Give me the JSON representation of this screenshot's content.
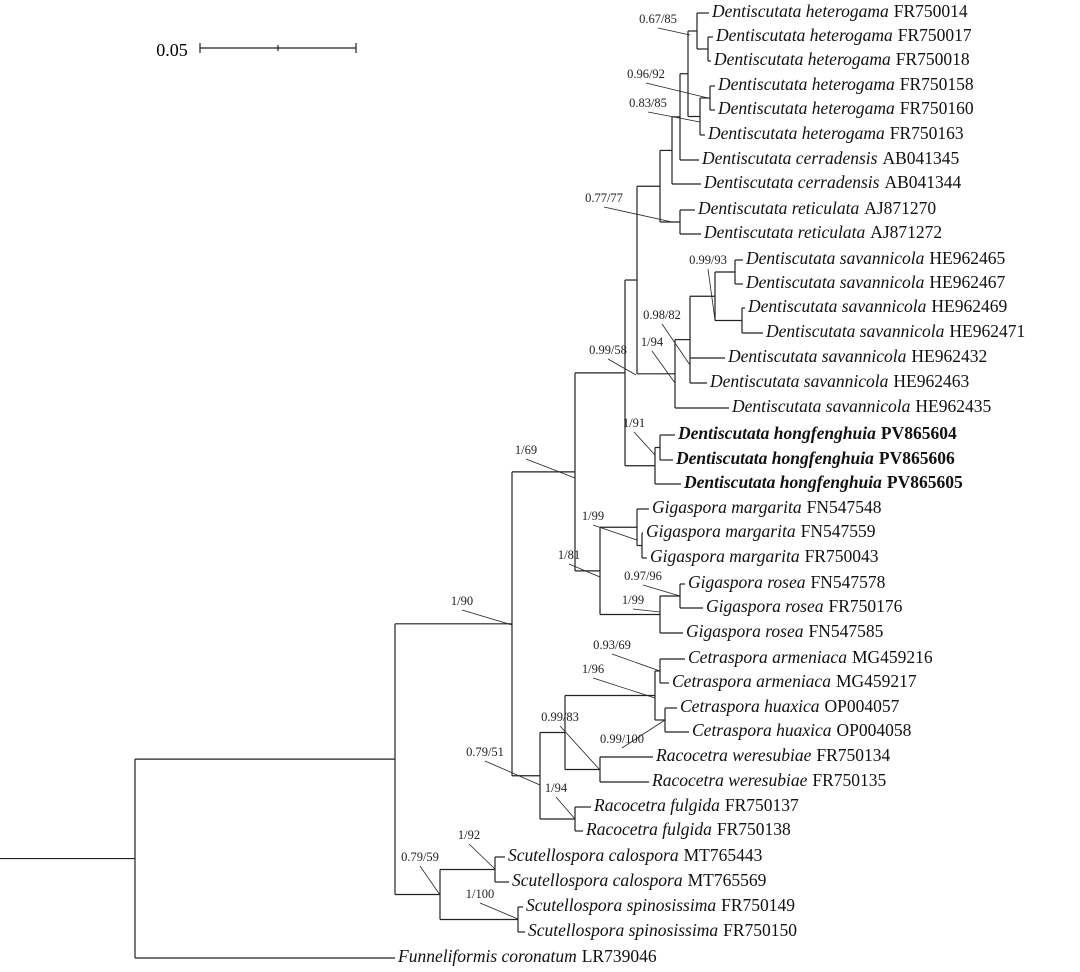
{
  "scale_bar": {
    "label": "0.05"
  },
  "taxa": [
    {
      "species": "Dentiscutata heterogama",
      "accession": "FR750014",
      "bold": false
    },
    {
      "species": "Dentiscutata heterogama",
      "accession": "FR750017",
      "bold": false
    },
    {
      "species": "Dentiscutata heterogama",
      "accession": "FR750018",
      "bold": false
    },
    {
      "species": "Dentiscutata heterogama",
      "accession": "FR750158",
      "bold": false
    },
    {
      "species": "Dentiscutata heterogama",
      "accession": "FR750160",
      "bold": false
    },
    {
      "species": "Dentiscutata heterogama",
      "accession": "FR750163",
      "bold": false
    },
    {
      "species": "Dentiscutata cerradensis",
      "accession": "AB041345",
      "bold": false
    },
    {
      "species": "Dentiscutata cerradensis",
      "accession": "AB041344",
      "bold": false
    },
    {
      "species": "Dentiscutata reticulata",
      "accession": "AJ871270",
      "bold": false
    },
    {
      "species": "Dentiscutata reticulata",
      "accession": "AJ871272",
      "bold": false
    },
    {
      "species": "Dentiscutata savannicola",
      "accession": "HE962465",
      "bold": false
    },
    {
      "species": "Dentiscutata savannicola",
      "accession": "HE962467",
      "bold": false
    },
    {
      "species": "Dentiscutata savannicola",
      "accession": "HE962469",
      "bold": false
    },
    {
      "species": "Dentiscutata savannicola",
      "accession": "HE962471",
      "bold": false
    },
    {
      "species": "Dentiscutata savannicola",
      "accession": "HE962432",
      "bold": false
    },
    {
      "species": "Dentiscutata savannicola",
      "accession": "HE962463",
      "bold": false
    },
    {
      "species": "Dentiscutata savannicola",
      "accession": "HE962435",
      "bold": false
    },
    {
      "species": "Dentiscutata hongfenghuia",
      "accession": "PV865604",
      "bold": true
    },
    {
      "species": "Dentiscutata hongfenghuia",
      "accession": "PV865606",
      "bold": true
    },
    {
      "species": "Dentiscutata hongfenghuia",
      "accession": "PV865605",
      "bold": true
    },
    {
      "species": "Gigaspora margarita",
      "accession": "FN547548",
      "bold": false
    },
    {
      "species": "Gigaspora margarita",
      "accession": "FN547559",
      "bold": false
    },
    {
      "species": "Gigaspora margarita",
      "accession": "FR750043",
      "bold": false
    },
    {
      "species": "Gigaspora rosea",
      "accession": "FN547578",
      "bold": false
    },
    {
      "species": "Gigaspora rosea",
      "accession": "FR750176",
      "bold": false
    },
    {
      "species": "Gigaspora rosea",
      "accession": "FN547585",
      "bold": false
    },
    {
      "species": "Cetraspora armeniaca",
      "accession": "MG459216",
      "bold": false
    },
    {
      "species": "Cetraspora armeniaca",
      "accession": "MG459217",
      "bold": false
    },
    {
      "species": "Cetraspora huaxica",
      "accession": "OP004057",
      "bold": false
    },
    {
      "species": "Cetraspora huaxica",
      "accession": "OP004058",
      "bold": false
    },
    {
      "species": "Racocetra weresubiae",
      "accession": "FR750134",
      "bold": false
    },
    {
      "species": "Racocetra weresubiae",
      "accession": "FR750135",
      "bold": false
    },
    {
      "species": "Racocetra fulgida",
      "accession": "FR750137",
      "bold": false
    },
    {
      "species": "Racocetra fulgida",
      "accession": "FR750138",
      "bold": false
    },
    {
      "species": "Scutellospora calospora",
      "accession": "MT765443",
      "bold": false
    },
    {
      "species": "Scutellospora calospora",
      "accession": "MT765569",
      "bold": false
    },
    {
      "species": "Scutellospora spinosissima",
      "accession": "FR750149",
      "bold": false
    },
    {
      "species": "Scutellospora spinosissima",
      "accession": "FR750150",
      "bold": false
    },
    {
      "species": "Funneliformis coronatum",
      "accession": "LR739046",
      "bold": false
    }
  ],
  "support_values": [
    "0.67/85",
    "0.96/92",
    "0.83/85",
    "0.77/77",
    "0.99/93",
    "0.98/82",
    "1/94",
    "0.99/58",
    "1/91",
    "1/69",
    "1/99",
    "1/81",
    "0.97/96",
    "1/99",
    "1/90",
    "0.93/69",
    "1/96",
    "0.99/83",
    "0.99/100",
    "0.79/51",
    "1/94",
    "1/92",
    "0.79/59",
    "1/100"
  ]
}
